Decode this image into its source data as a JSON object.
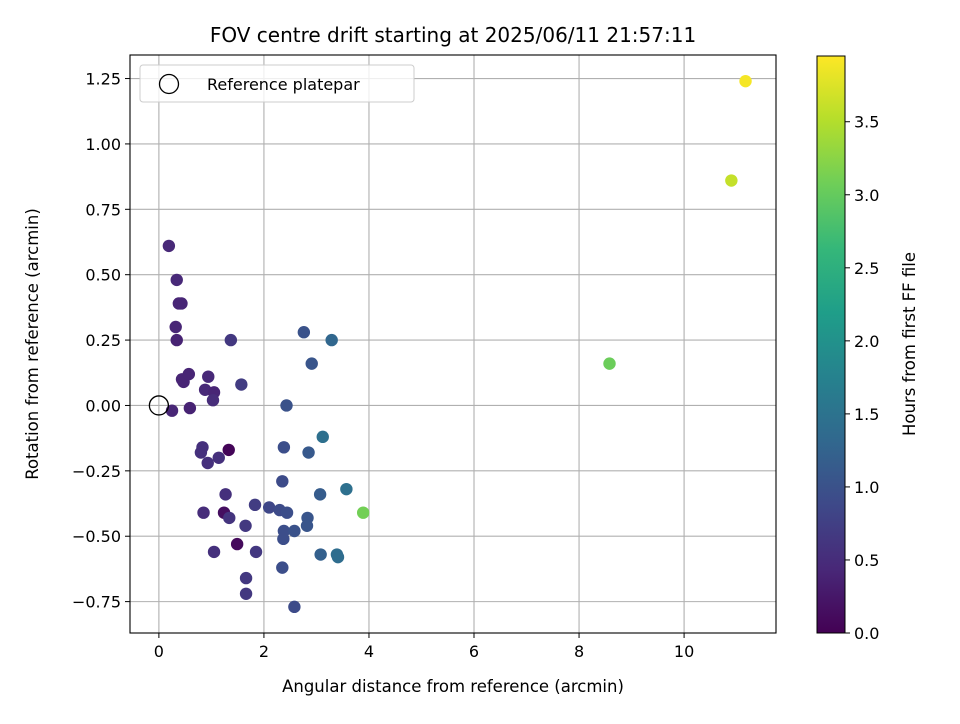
{
  "chart_data": {
    "type": "scatter",
    "title": "FOV centre drift starting at 2025/06/11 21:57:11",
    "xlabel": "Angular distance from reference (arcmin)",
    "ylabel": "Rotation from reference (arcmin)",
    "colorbar_label": "Hours from first FF file",
    "colormap": "viridis",
    "xlim": [
      -0.55,
      11.75
    ],
    "ylim": [
      -0.87,
      1.34
    ],
    "clim": [
      0,
      3.95
    ],
    "grid": true,
    "legend_position": "top-left",
    "x_ticks": [
      0,
      2,
      4,
      6,
      8,
      10
    ],
    "x_tick_labels": [
      "0",
      "2",
      "4",
      "6",
      "8",
      "10"
    ],
    "y_ticks": [
      -0.75,
      -0.5,
      -0.25,
      0,
      0.25,
      0.5,
      0.75,
      1.0,
      1.25
    ],
    "y_tick_labels": [
      "−0.75",
      "−0.50",
      "−0.25",
      "0.00",
      "0.25",
      "0.50",
      "0.75",
      "1.00",
      "1.25"
    ],
    "colorbar_ticks": [
      0,
      0.5,
      1.0,
      1.5,
      2.0,
      2.5,
      3.0,
      3.5
    ],
    "colorbar_tick_labels": [
      "0.0",
      "0.5",
      "1.0",
      "1.5",
      "2.0",
      "2.5",
      "3.0",
      "3.5"
    ],
    "reference": {
      "label": "Reference platepar",
      "x": 0,
      "y": 0
    },
    "points": [
      {
        "x": 0.19,
        "y": 0.61,
        "h": 0.45
      },
      {
        "x": 0.34,
        "y": 0.48,
        "h": 0.45
      },
      {
        "x": 0.38,
        "y": 0.39,
        "h": 0.42
      },
      {
        "x": 0.43,
        "y": 0.39,
        "h": 0.42
      },
      {
        "x": 0.32,
        "y": 0.3,
        "h": 0.42
      },
      {
        "x": 0.34,
        "y": 0.25,
        "h": 0.38
      },
      {
        "x": 0.44,
        "y": 0.1,
        "h": 0.4
      },
      {
        "x": 0.47,
        "y": 0.09,
        "h": 0.4
      },
      {
        "x": 0.57,
        "y": 0.12,
        "h": 0.4
      },
      {
        "x": 0.25,
        "y": -0.02,
        "h": 0.42
      },
      {
        "x": 0.59,
        "y": -0.01,
        "h": 0.38
      },
      {
        "x": 0.94,
        "y": 0.11,
        "h": 0.45
      },
      {
        "x": 0.88,
        "y": 0.06,
        "h": 0.45
      },
      {
        "x": 1.05,
        "y": 0.05,
        "h": 0.4
      },
      {
        "x": 1.03,
        "y": 0.02,
        "h": 0.5
      },
      {
        "x": 1.37,
        "y": 0.25,
        "h": 0.65
      },
      {
        "x": 1.57,
        "y": 0.08,
        "h": 0.7
      },
      {
        "x": 0.83,
        "y": -0.16,
        "h": 0.55
      },
      {
        "x": 0.8,
        "y": -0.18,
        "h": 0.55
      },
      {
        "x": 0.93,
        "y": -0.22,
        "h": 0.55
      },
      {
        "x": 1.14,
        "y": -0.2,
        "h": 0.55
      },
      {
        "x": 1.33,
        "y": -0.17,
        "h": 0.05
      },
      {
        "x": 1.27,
        "y": -0.34,
        "h": 0.55
      },
      {
        "x": 0.85,
        "y": -0.41,
        "h": 0.5
      },
      {
        "x": 1.24,
        "y": -0.41,
        "h": 0.15
      },
      {
        "x": 1.34,
        "y": -0.43,
        "h": 0.6
      },
      {
        "x": 1.05,
        "y": -0.56,
        "h": 0.55
      },
      {
        "x": 1.49,
        "y": -0.53,
        "h": 0.1
      },
      {
        "x": 1.65,
        "y": -0.46,
        "h": 0.65
      },
      {
        "x": 1.83,
        "y": -0.38,
        "h": 0.7
      },
      {
        "x": 1.85,
        "y": -0.56,
        "h": 0.65
      },
      {
        "x": 1.66,
        "y": -0.66,
        "h": 0.65
      },
      {
        "x": 1.66,
        "y": -0.72,
        "h": 0.65
      },
      {
        "x": 2.1,
        "y": -0.39,
        "h": 0.85
      },
      {
        "x": 2.3,
        "y": -0.4,
        "h": 0.9
      },
      {
        "x": 2.35,
        "y": -0.29,
        "h": 0.9
      },
      {
        "x": 2.44,
        "y": -0.41,
        "h": 0.95
      },
      {
        "x": 2.38,
        "y": -0.48,
        "h": 0.95
      },
      {
        "x": 2.37,
        "y": -0.51,
        "h": 0.95
      },
      {
        "x": 2.58,
        "y": -0.48,
        "h": 1.0
      },
      {
        "x": 2.35,
        "y": -0.62,
        "h": 0.95
      },
      {
        "x": 2.58,
        "y": -0.77,
        "h": 0.9
      },
      {
        "x": 2.38,
        "y": -0.16,
        "h": 0.95
      },
      {
        "x": 2.43,
        "y": 0.0,
        "h": 1.0
      },
      {
        "x": 2.76,
        "y": 0.28,
        "h": 1.0
      },
      {
        "x": 2.91,
        "y": 0.16,
        "h": 1.05
      },
      {
        "x": 3.29,
        "y": 0.25,
        "h": 1.3
      },
      {
        "x": 2.85,
        "y": -0.18,
        "h": 1.1
      },
      {
        "x": 3.12,
        "y": -0.12,
        "h": 1.45
      },
      {
        "x": 2.83,
        "y": -0.43,
        "h": 1.05
      },
      {
        "x": 2.82,
        "y": -0.46,
        "h": 1.05
      },
      {
        "x": 3.07,
        "y": -0.34,
        "h": 1.15
      },
      {
        "x": 3.08,
        "y": -0.57,
        "h": 1.2
      },
      {
        "x": 3.39,
        "y": -0.57,
        "h": 1.4
      },
      {
        "x": 3.41,
        "y": -0.58,
        "h": 1.4
      },
      {
        "x": 3.57,
        "y": -0.32,
        "h": 1.45
      },
      {
        "x": 3.89,
        "y": -0.41,
        "h": 3.1
      },
      {
        "x": 8.58,
        "y": 0.16,
        "h": 3.05
      },
      {
        "x": 10.9,
        "y": 0.86,
        "h": 3.6
      },
      {
        "x": 11.17,
        "y": 1.24,
        "h": 3.9
      }
    ]
  }
}
